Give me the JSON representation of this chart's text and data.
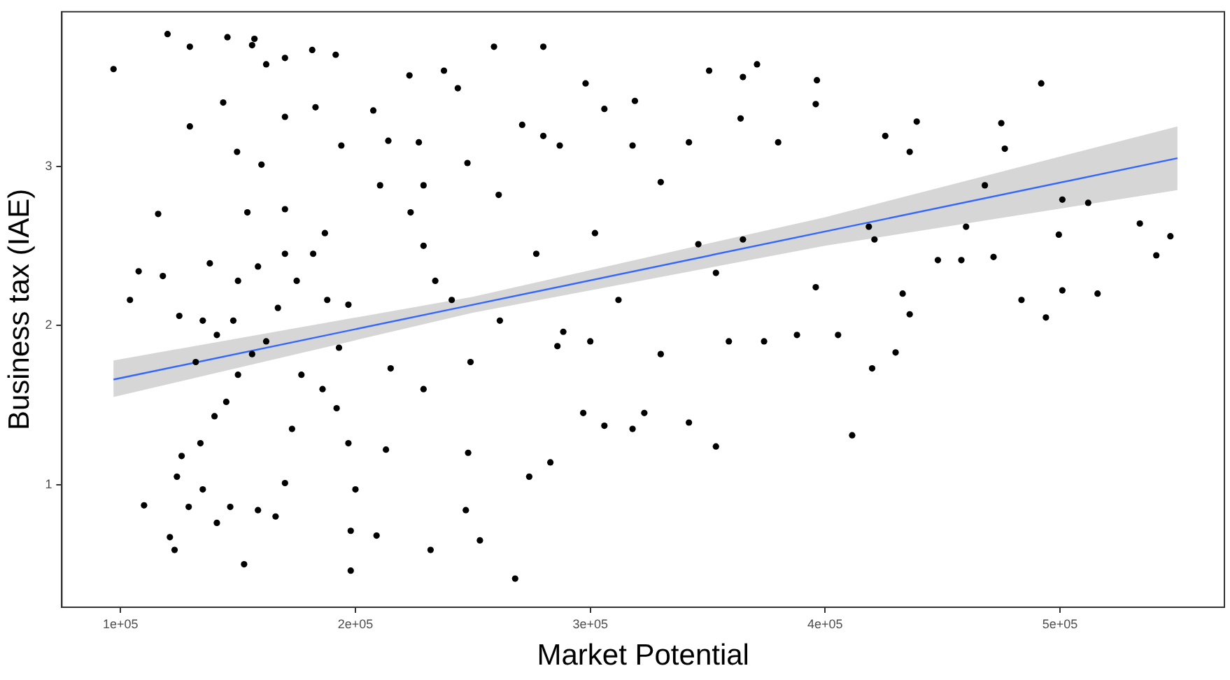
{
  "chart_data": {
    "type": "scatter",
    "xlabel": "Market Potential",
    "ylabel": "Business tax (IAE)",
    "xlim": [
      75000,
      570000
    ],
    "ylim": [
      0.23,
      3.97
    ],
    "xticks": [
      {
        "value": 100000,
        "label": "1e+05"
      },
      {
        "value": 200000,
        "label": "2e+05"
      },
      {
        "value": 300000,
        "label": "3e+05"
      },
      {
        "value": 400000,
        "label": "4e+05"
      },
      {
        "value": 500000,
        "label": "5e+05"
      }
    ],
    "yticks": [
      1,
      2,
      3
    ],
    "grid": false,
    "legend": false,
    "series": [
      {
        "color": "#000000",
        "marker": "circle",
        "x": [
          97000,
          104000,
          107700,
          120000,
          129500,
          129500,
          110000,
          116000,
          118000,
          125000,
          124000,
          121000,
          143700,
          145500,
          149600,
          157000,
          156000,
          154000,
          160000,
          162000,
          170000,
          170000,
          181600,
          191600,
          183000,
          187000,
          194000,
          207600,
          210500,
          214000,
          223000,
          227000,
          237700,
          243600,
          259000,
          280000,
          247700,
          261000,
          271000,
          280000,
          287000,
          298000,
          306000,
          319000,
          330000,
          342000,
          350600,
          365000,
          371000,
          364000,
          380000,
          396000,
          396500,
          425600,
          436000,
          439000,
          475000,
          492000,
          476500,
          501000,
          512000,
          534000,
          547000,
          541000,
          501000,
          494000,
          483600,
          471700,
          458000,
          448000,
          436000,
          430000,
          420000,
          411500,
          405500,
          396000,
          388000,
          374000,
          359000,
          353500,
          353500,
          346000,
          342000,
          330000,
          323000,
          318000,
          306000,
          297000,
          288500,
          286000,
          283000,
          268000,
          274000,
          248000,
          253000,
          247000,
          232000,
          249000,
          229000,
          215000,
          213000,
          209000,
          198000,
          198000,
          200000,
          197000,
          192000,
          186000,
          177000,
          173000,
          170000,
          166000,
          158500,
          152600,
          146700,
          141000,
          135000,
          129000,
          123000,
          126000,
          134000,
          140000,
          145000,
          150000,
          156000,
          162000,
          167000,
          175000,
          182000,
          188000,
          197000,
          193000,
          170000,
          158500,
          150000,
          138000,
          135000,
          132000,
          141000,
          148000,
          170000,
          223500,
          229000,
          229000,
          234000,
          241000,
          261500,
          277000,
          300000,
          312000,
          318000,
          302000,
          365000,
          418600,
          433000,
          460000,
          468000,
          516000,
          499500,
          421000
        ],
        "values": [
          3.61,
          2.16,
          2.34,
          3.83,
          3.75,
          3.25,
          0.87,
          2.7,
          2.31,
          2.06,
          1.05,
          0.67,
          3.4,
          3.81,
          3.09,
          3.8,
          3.76,
          2.71,
          3.01,
          3.64,
          3.68,
          3.31,
          3.73,
          3.7,
          3.37,
          2.58,
          3.13,
          3.35,
          2.88,
          3.16,
          3.57,
          3.15,
          3.6,
          3.49,
          3.75,
          3.75,
          3.02,
          2.82,
          3.26,
          3.19,
          3.13,
          3.52,
          3.36,
          3.41,
          2.9,
          3.15,
          3.6,
          3.56,
          3.64,
          3.3,
          3.15,
          3.39,
          3.54,
          3.19,
          3.09,
          3.28,
          3.27,
          3.52,
          3.11,
          2.79,
          2.77,
          2.64,
          2.56,
          2.44,
          2.22,
          2.05,
          2.16,
          2.43,
          2.41,
          2.41,
          2.07,
          1.83,
          1.73,
          1.31,
          1.94,
          2.24,
          1.94,
          1.9,
          1.9,
          1.24,
          2.33,
          2.51,
          1.39,
          1.82,
          1.45,
          1.35,
          1.37,
          1.45,
          1.96,
          1.87,
          1.14,
          0.41,
          1.05,
          1.2,
          0.65,
          0.84,
          0.59,
          1.77,
          1.6,
          1.73,
          1.22,
          0.68,
          0.46,
          0.71,
          0.97,
          1.26,
          1.48,
          1.6,
          1.69,
          1.35,
          1.01,
          0.8,
          0.84,
          0.5,
          0.86,
          0.76,
          0.97,
          0.86,
          0.59,
          1.18,
          1.26,
          1.43,
          1.52,
          1.69,
          1.82,
          1.9,
          2.11,
          2.28,
          2.45,
          2.16,
          2.13,
          1.86,
          2.45,
          2.37,
          2.28,
          2.39,
          2.03,
          1.77,
          1.94,
          2.03,
          2.73,
          2.71,
          2.88,
          2.5,
          2.28,
          2.16,
          2.03,
          2.45,
          1.9,
          2.16,
          3.13,
          2.58,
          2.54,
          2.62,
          2.2,
          2.62,
          2.88,
          2.2,
          2.57,
          2.54
        ]
      },
      {
        "type": "line",
        "marker": "none",
        "color": "#3366ff",
        "x": [
          97000,
          250000,
          400000,
          550000
        ],
        "values": [
          1.66,
          2.13,
          2.59,
          3.05
        ],
        "lower": [
          1.55,
          2.08,
          2.5,
          2.85
        ],
        "upper": [
          1.78,
          2.18,
          2.68,
          3.25
        ]
      }
    ]
  }
}
